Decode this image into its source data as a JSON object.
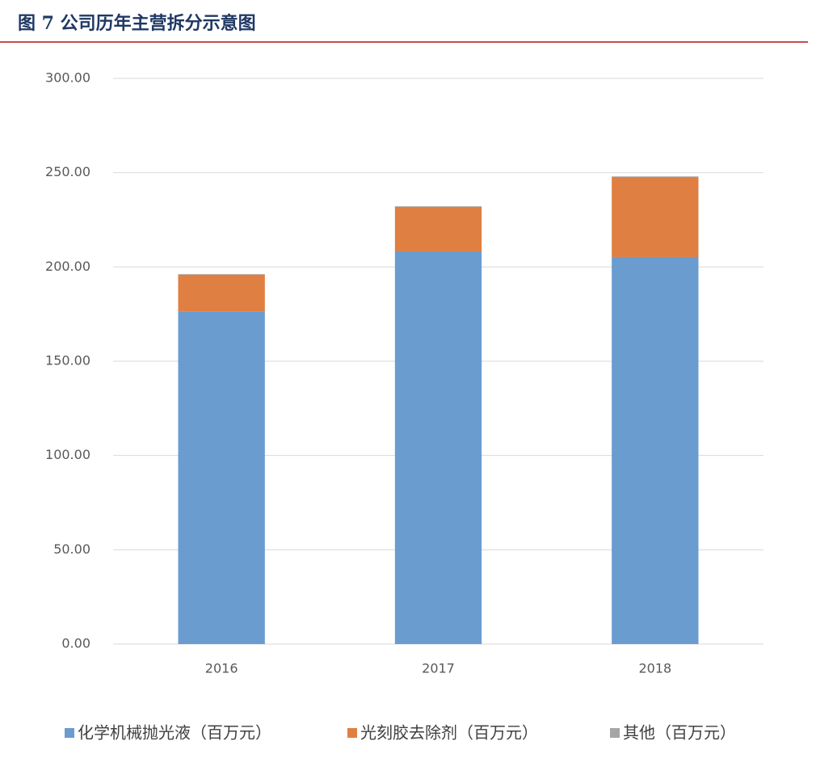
{
  "chart_data": {
    "type": "stacked-bar",
    "title": "图 7 公司历年主营拆分示意图",
    "categories": [
      "2016",
      "2017",
      "2018"
    ],
    "series": [
      {
        "name": "化学机械抛光液（百万元）",
        "color": "#6a9ccf",
        "values": [
          176.5,
          208.3,
          205.3
        ]
      },
      {
        "name": "光刻胶去除剂（百万元）",
        "color": "#e07f42",
        "values": [
          19.4,
          23.6,
          42.4
        ]
      },
      {
        "name": "其他（百万元）",
        "color": "#a5a5a5",
        "values": [
          0.3,
          0.3,
          0.3
        ]
      }
    ],
    "ylim": [
      0,
      300
    ],
    "yticks": [
      {
        "value": 0,
        "label": "0.00"
      },
      {
        "value": 50,
        "label": "50.00"
      },
      {
        "value": 100,
        "label": "100.00"
      },
      {
        "value": 150,
        "label": "150.00"
      },
      {
        "value": 200,
        "label": "200.00"
      },
      {
        "value": 250,
        "label": "250.00"
      },
      {
        "value": 300,
        "label": "300.00"
      }
    ],
    "grid": true
  }
}
